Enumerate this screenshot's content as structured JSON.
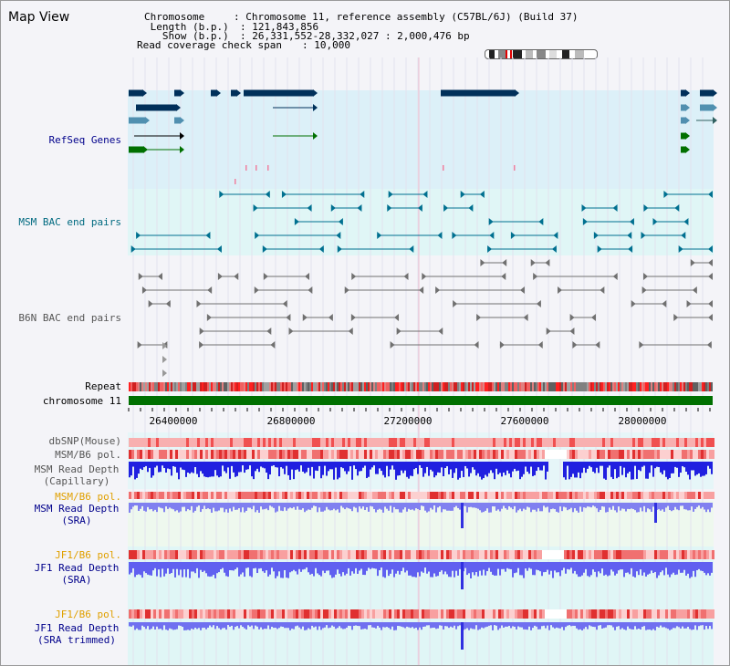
{
  "app": {
    "title": "Map View"
  },
  "header": {
    "chromosome_label": "Chromosome    ",
    "chromosome_value": ": Chromosome 11, reference assembly (C57BL/6J) (Build 37)",
    "length_label": " Length (b.p.)",
    "length_value": ": 121,843,856",
    "show_label": "   Show (b.p.)",
    "show_value": ": 26,331,552-28,332,027 : 2,000,476 bp",
    "coverage_label": "Read coverage check span",
    "coverage_value": ": 10,000"
  },
  "tracks": {
    "refseq": {
      "label": "RefSeq Genes"
    },
    "msm_bac": {
      "label": "MSM BAC end pairs"
    },
    "b6n_bac": {
      "label": "B6N BAC end pairs"
    },
    "repeat": {
      "label": "Repeat"
    },
    "chromosome": {
      "label": "chromosome 11"
    },
    "dbsnp": {
      "label": "dbSNP(Mouse)"
    },
    "msm_b6_pol_1": {
      "label": "MSM/B6 pol."
    },
    "msm_depth_cap": {
      "label_line1": "MSM Read Depth",
      "label_line2": "(Capillary)"
    },
    "msm_b6_pol_2": {
      "label": "MSM/B6 pol."
    },
    "msm_depth_sra": {
      "label_line1": "MSM Read Depth",
      "label_line2": "(SRA)"
    },
    "jf1_b6_pol_1": {
      "label": "JF1/B6 pol."
    },
    "jf1_depth_sra": {
      "label_line1": "JF1 Read Depth",
      "label_line2": "(SRA)"
    },
    "jf1_b6_pol_2": {
      "label": "JF1/B6 pol."
    },
    "jf1_depth_trim": {
      "label_line1": "JF1 Read Depth",
      "label_line2": "(SRA trimmed)"
    }
  },
  "axis": {
    "ticks": [
      "26400000",
      "26800000",
      "27200000",
      "27600000",
      "28000000"
    ]
  },
  "colors": {
    "refseq_band": "#dcf0f8",
    "msm_band": "#e0f6f6",
    "depth_band": "#eef8ee",
    "jf1_band": "#e0f6f6",
    "label_blue": "#00008b",
    "label_teal": "#006a80",
    "label_gray": "#555555",
    "label_orange": "#e0a000",
    "gene_dark": "#00305a",
    "bac_teal": "#007090",
    "bac_gray": "#707070",
    "chrom_green": "#007000"
  }
}
